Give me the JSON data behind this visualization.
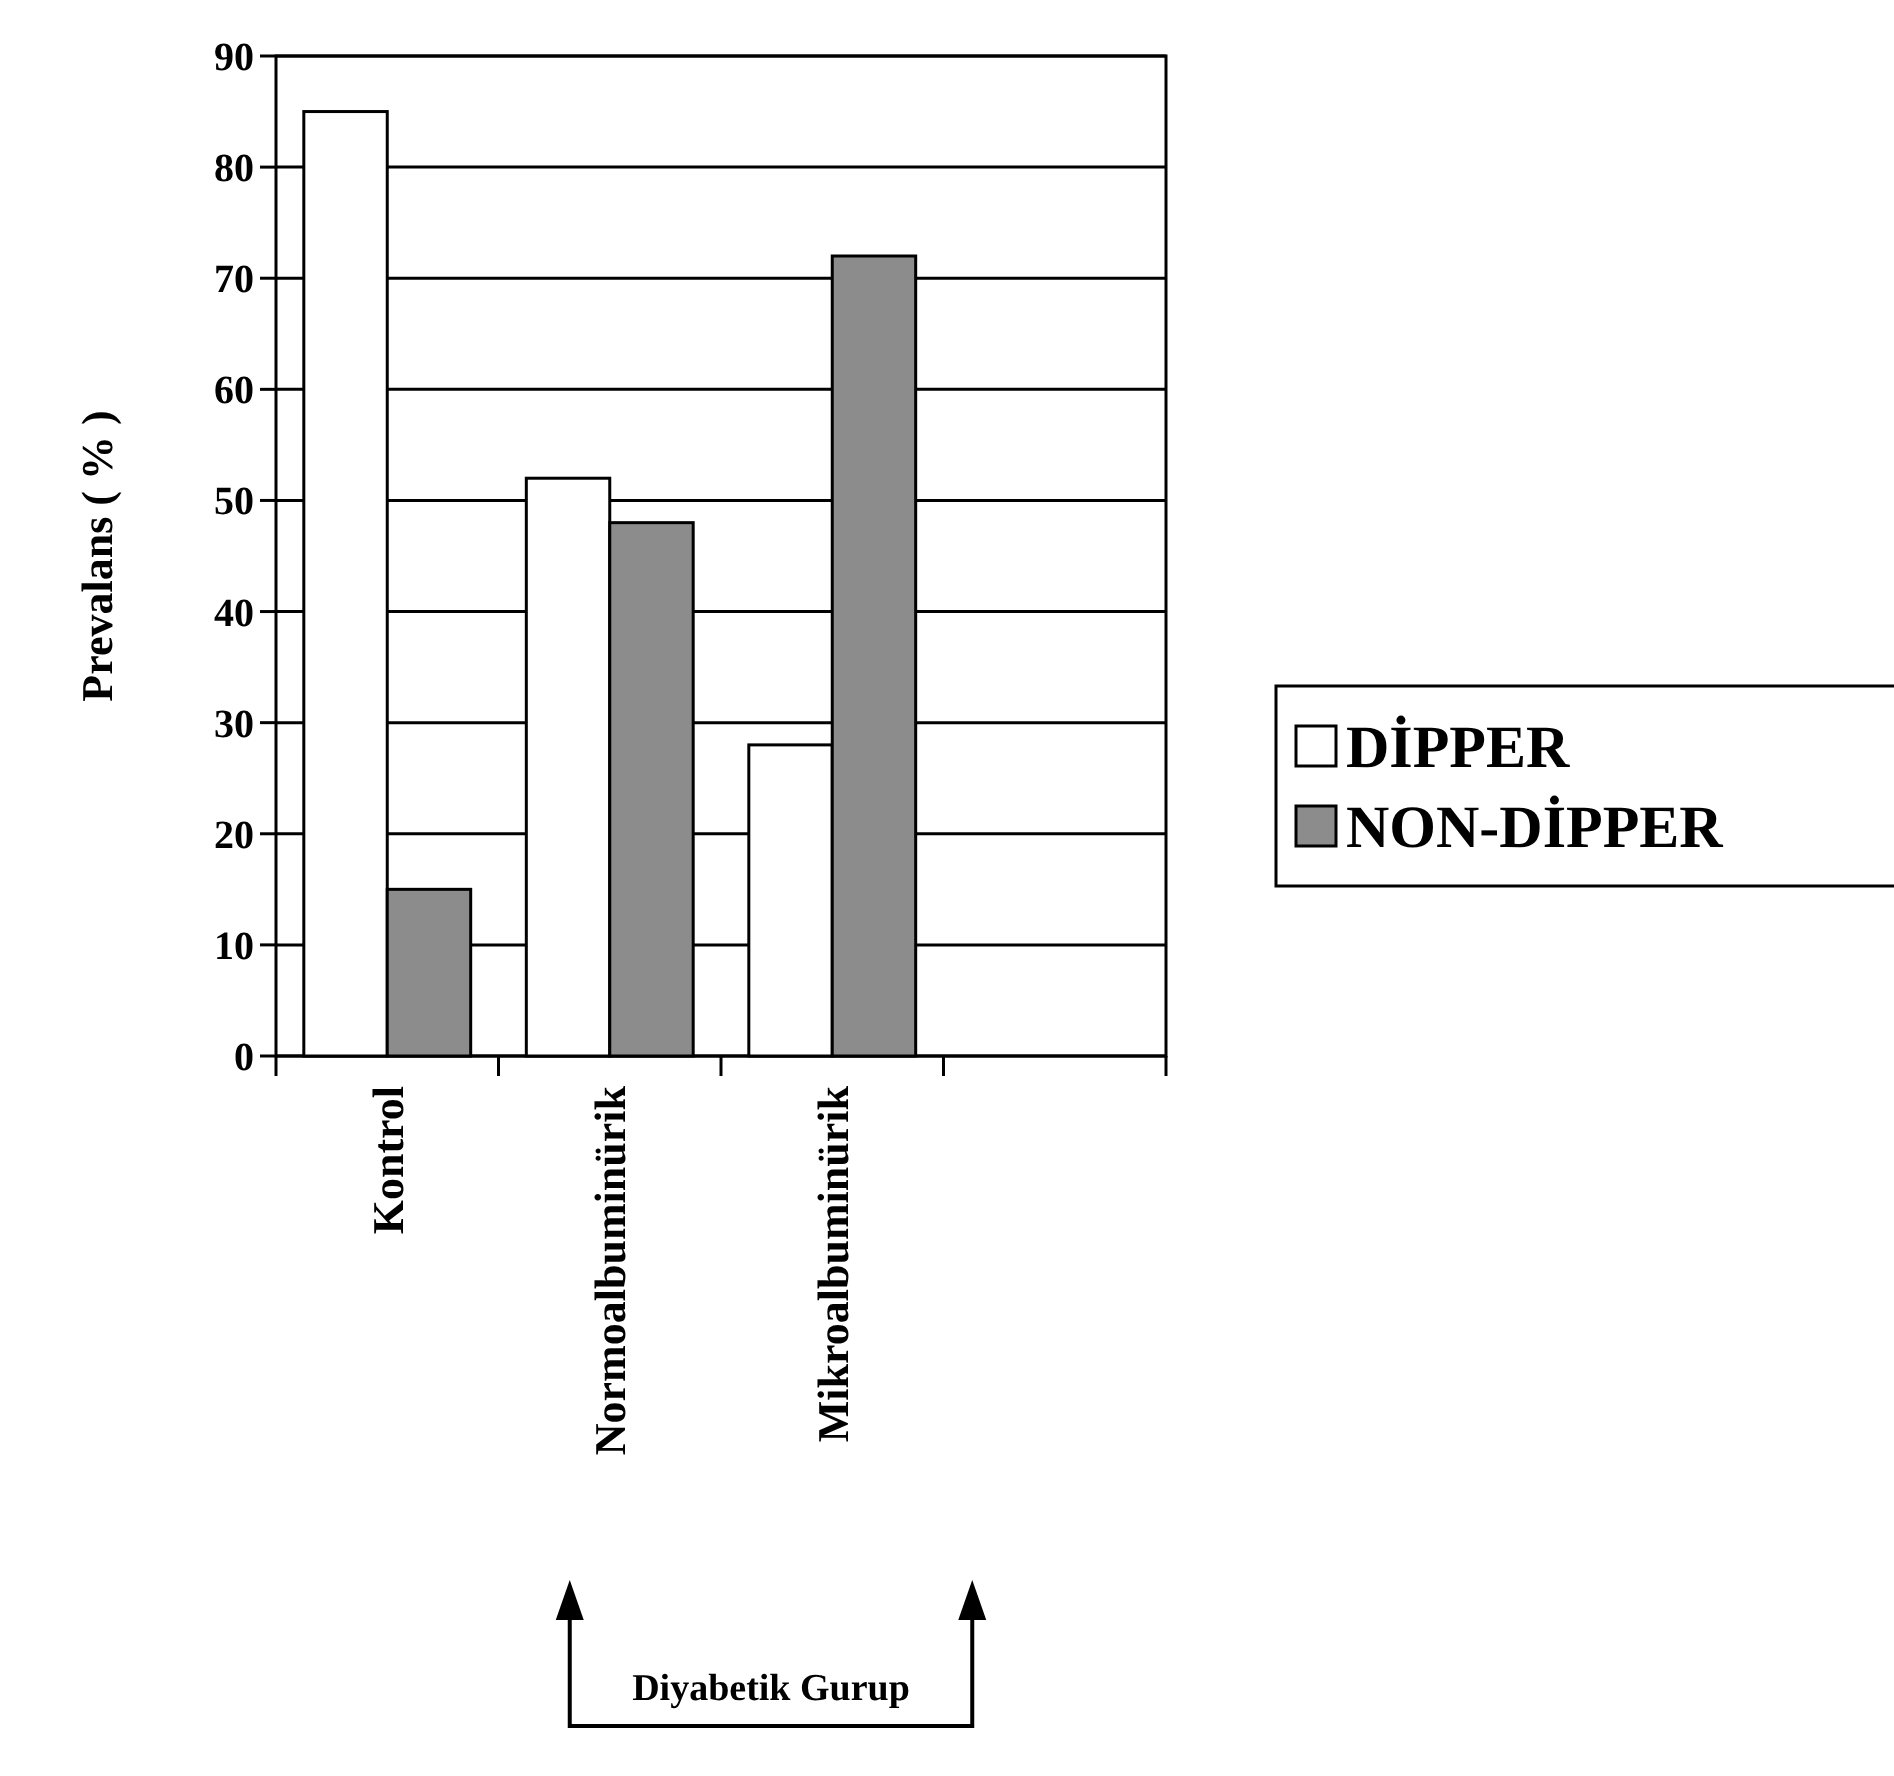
{
  "chart_data": {
    "type": "bar",
    "ylabel": "Prevalans ( % )",
    "categories": [
      "Kontrol",
      "Normoalbuminürik",
      "Mikroalbuminürik",
      null
    ],
    "series": [
      {
        "name": "DİPPER",
        "color": "#ffffff",
        "values": [
          85,
          52,
          28,
          null
        ]
      },
      {
        "name": "NON-DİPPER",
        "color": "#8c8c8c",
        "values": [
          15,
          48,
          72,
          null
        ]
      }
    ],
    "ylim": [
      0,
      90
    ],
    "yticks": [
      0,
      10,
      20,
      30,
      40,
      50,
      60,
      70,
      80,
      90
    ],
    "grid": "y",
    "legend": "right",
    "annotations": [
      "Diyabetik Gurup"
    ]
  }
}
